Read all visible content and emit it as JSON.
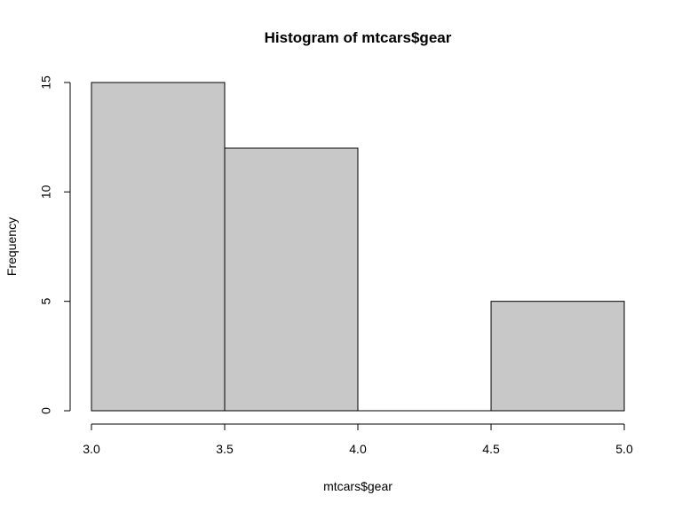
{
  "chart_data": {
    "type": "bar",
    "title": "Histogram of mtcars$gear",
    "xlabel": "mtcars$gear",
    "ylabel": "Frequency",
    "bins": [
      {
        "start": 3.0,
        "end": 3.5,
        "count": 15
      },
      {
        "start": 3.5,
        "end": 4.0,
        "count": 12
      },
      {
        "start": 4.0,
        "end": 4.5,
        "count": 0
      },
      {
        "start": 4.5,
        "end": 5.0,
        "count": 5
      }
    ],
    "xlim": [
      3.0,
      5.0
    ],
    "ylim": [
      0,
      15
    ],
    "x_ticks": [
      "3.0",
      "3.5",
      "4.0",
      "4.5",
      "5.0"
    ],
    "y_ticks": [
      "0",
      "5",
      "10",
      "15"
    ],
    "bar_color": "#c8c8c8",
    "grid": false
  }
}
